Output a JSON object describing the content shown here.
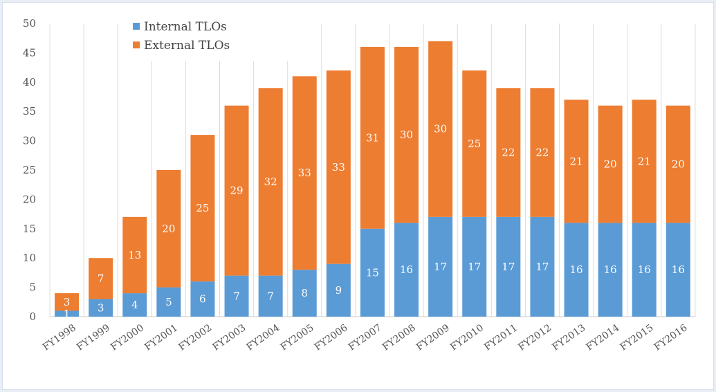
{
  "chart_data": {
    "type": "bar",
    "stacked": true,
    "categories": [
      "FY1998",
      "FY1999",
      "FY2000",
      "FY2001",
      "FY2002",
      "FY2003",
      "FY2004",
      "FY2005",
      "FY2006",
      "FY2007",
      "FY2008",
      "FY2009",
      "FY2010",
      "FY2011",
      "FY2012",
      "FY2013",
      "FY2014",
      "FY2015",
      "FY2016"
    ],
    "series": [
      {
        "name": "Internal TLOs",
        "color": "#5b9bd5",
        "values": [
          1,
          3,
          4,
          5,
          6,
          7,
          7,
          8,
          9,
          15,
          16,
          17,
          17,
          17,
          17,
          16,
          16,
          16,
          16
        ]
      },
      {
        "name": "External TLOs",
        "color": "#ed7d31",
        "values": [
          3,
          7,
          13,
          20,
          25,
          29,
          32,
          33,
          33,
          31,
          30,
          30,
          25,
          22,
          22,
          21,
          20,
          21,
          20
        ]
      }
    ],
    "ylim": [
      0,
      50
    ],
    "yticks": [
      0,
      5,
      10,
      15,
      20,
      25,
      30,
      35,
      40,
      45,
      50
    ],
    "grid": "vertical",
    "legend_position": "top-left",
    "data_labels": true
  }
}
